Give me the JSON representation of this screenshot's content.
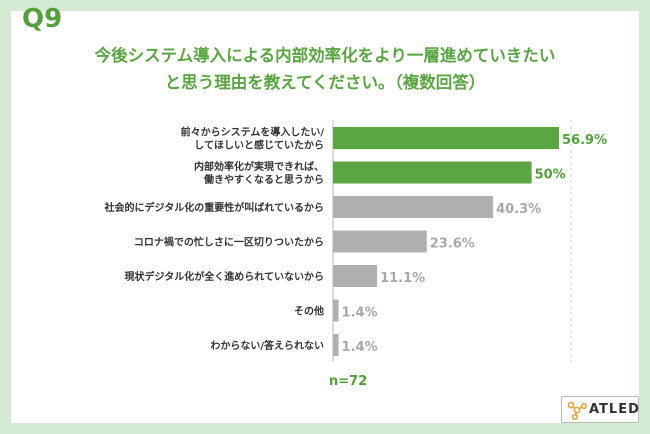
{
  "question_number": "Q9",
  "title_line1": "今後システム導入による内部効率化をより一層進めていきたい",
  "title_line2": "と思う理由を教えてください。（複数回答）",
  "sample_size": "n=72",
  "logo_text": "ATLED",
  "colors": {
    "highlight": "#5aa642",
    "normal": "#b0b0b0",
    "value_highlight": "#52a03a",
    "value_normal": "#a8a8a8",
    "background": "#d5ead3"
  },
  "chart_data": {
    "type": "bar",
    "orientation": "horizontal",
    "categories": [
      [
        "前々からシステムを導入したい/",
        "してほしいと感じていたから"
      ],
      [
        "内部効率化が実現できれば、",
        "働きやすくなると思うから"
      ],
      [
        "社会的にデジタル化の重要性が叫ばれているから"
      ],
      [
        "コロナ禍での忙しさに一区切りついたから"
      ],
      [
        "現状デジタル化が全く進められていないから"
      ],
      [
        "その他"
      ],
      [
        "わからない/答えられない"
      ]
    ],
    "values": [
      56.9,
      50,
      40.3,
      23.6,
      11.1,
      1.4,
      1.4
    ],
    "value_labels": [
      "56.9%",
      "50%",
      "40.3%",
      "23.6%",
      "11.1%",
      "1.4%",
      "1.4%"
    ],
    "highlighted": [
      true,
      true,
      false,
      false,
      false,
      false,
      false
    ],
    "unit": "%",
    "xlim": [
      0,
      60
    ]
  }
}
